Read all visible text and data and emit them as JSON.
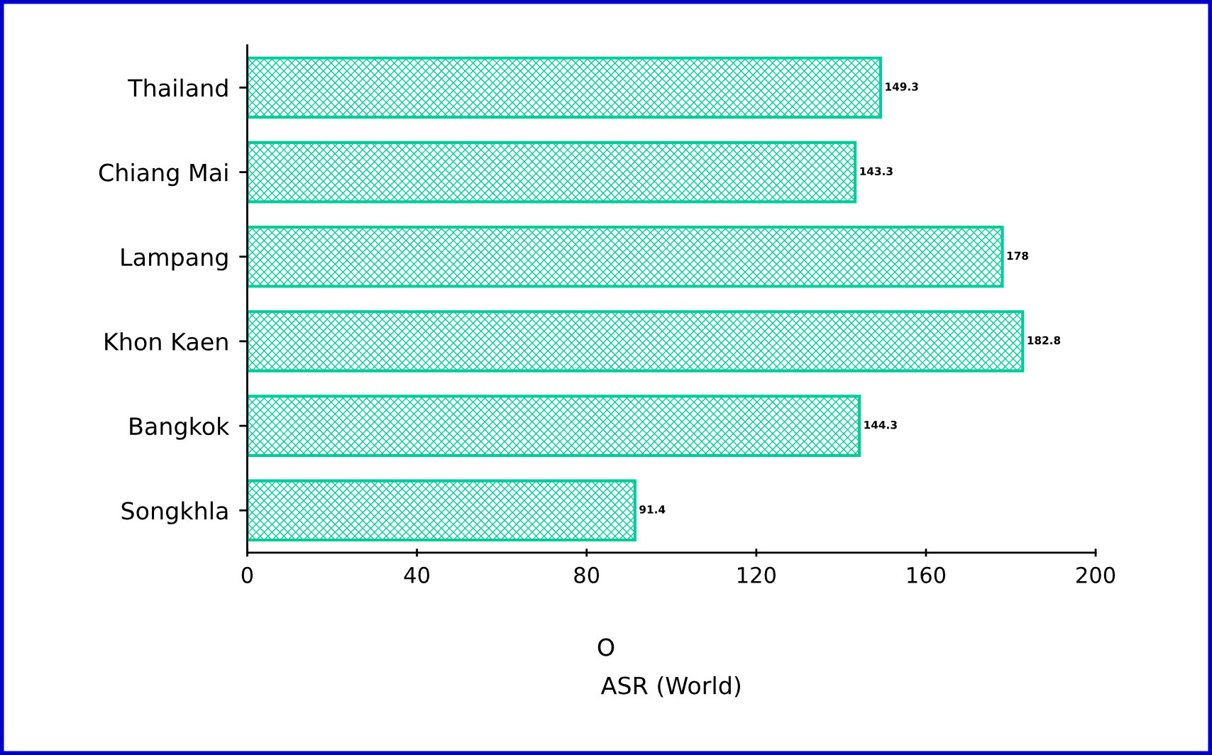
{
  "chart_data": {
    "type": "bar",
    "orientation": "horizontal",
    "xlabel": "ASR (World)",
    "categories": [
      "Thailand",
      "Chiang Mai",
      "Lampang",
      "Khon Kaen",
      "Bangkok",
      "Songkhla"
    ],
    "values": [
      149.3,
      143.3,
      178,
      182.8,
      144.3,
      91.4
    ],
    "color": "#00cc99",
    "xlim": [
      0,
      200
    ],
    "xticks": [
      0,
      40,
      80,
      120,
      160,
      200
    ],
    "data_labels": true,
    "grid": false,
    "legend": false,
    "annotations": [
      "O"
    ]
  }
}
